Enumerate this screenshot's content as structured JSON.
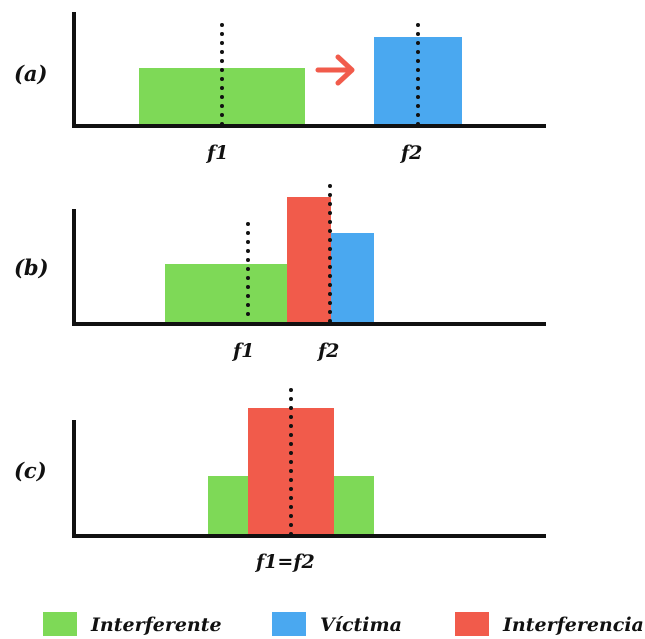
{
  "colors": {
    "interferente": "#7ed957",
    "victima": "#4aa8f0",
    "interferencia": "#f15b4b",
    "arrow": "#f15b4b",
    "axis": "#111111"
  },
  "panels": {
    "a": {
      "label": "(a)",
      "f1": "f1",
      "f2": "f2"
    },
    "b": {
      "label": "(b)",
      "f1": "f1",
      "f2": "f2"
    },
    "c": {
      "label": "(c)",
      "f": "f1=f2"
    }
  },
  "legend": {
    "interferente": "Interferente",
    "victima": "Víctima",
    "interferencia": "Interferencia"
  }
}
